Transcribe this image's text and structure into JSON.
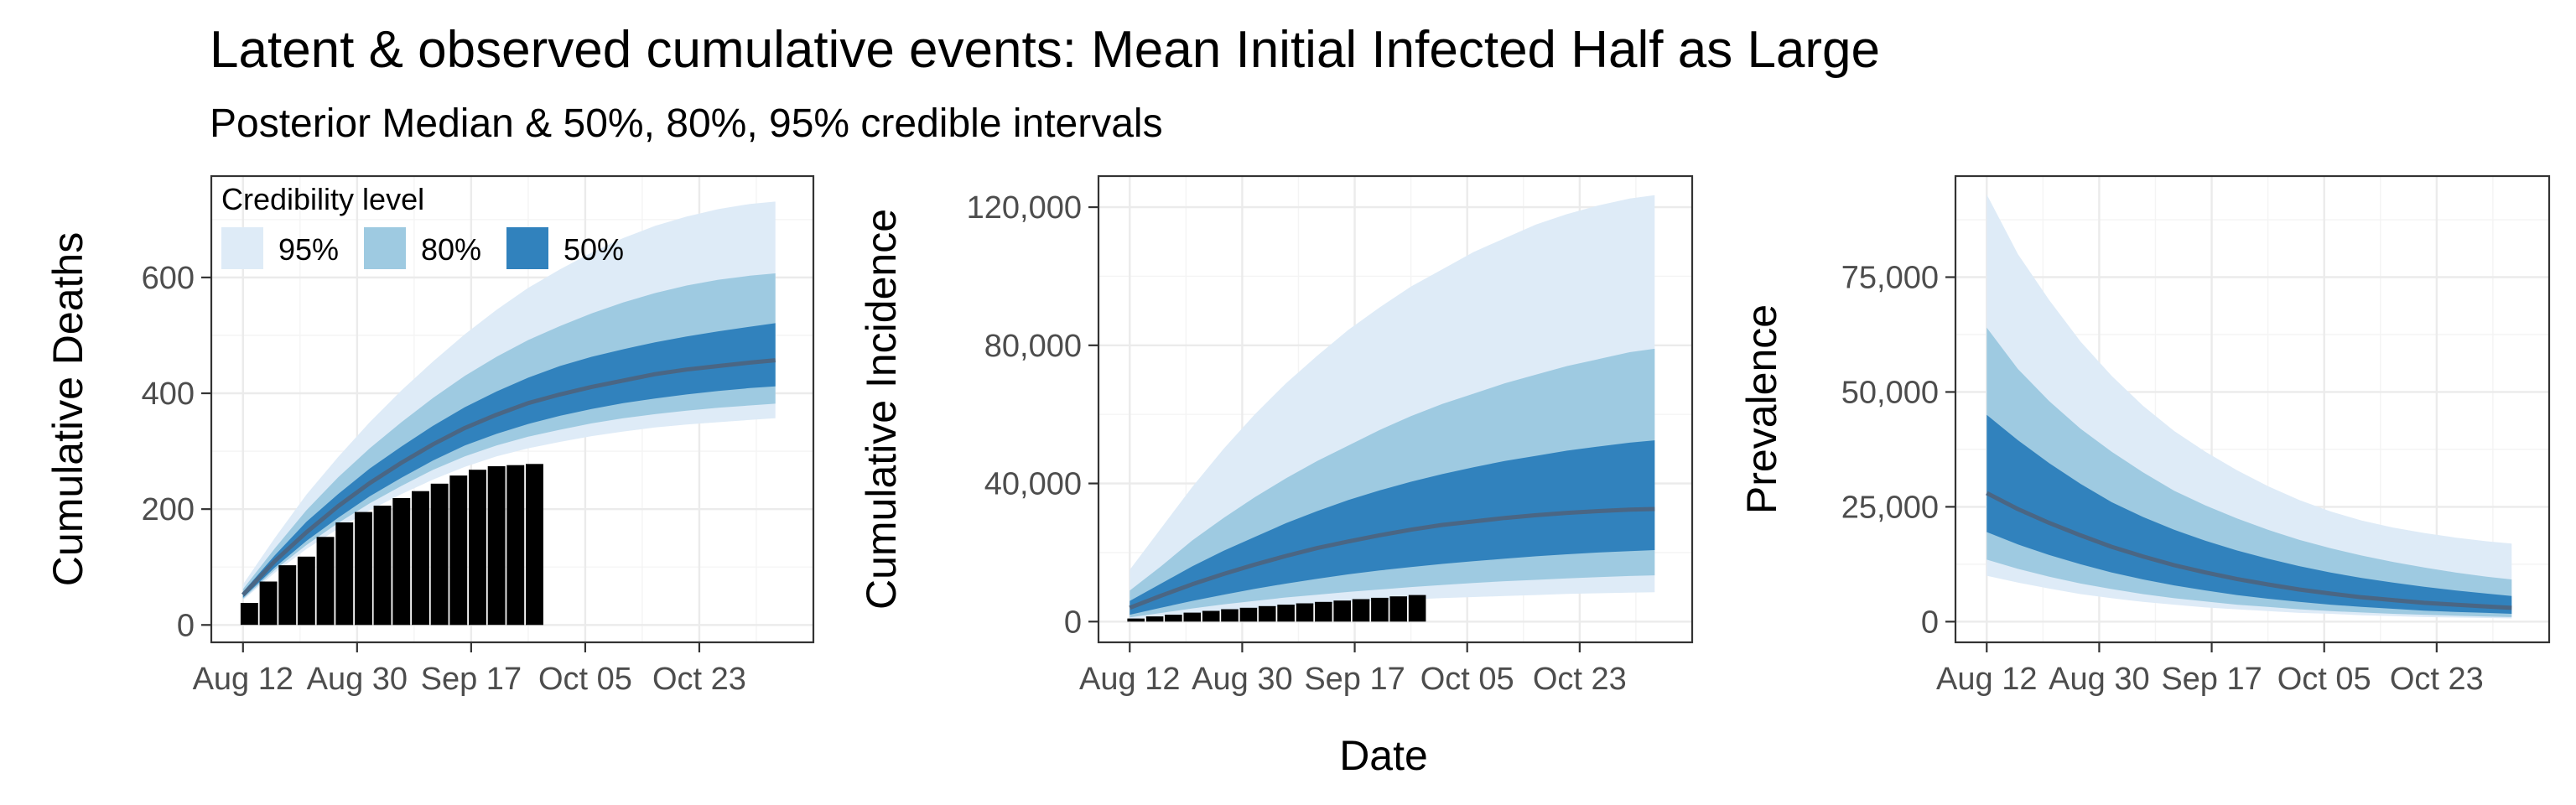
{
  "title": "Latent & observed cumulative events: Mean Initial Infected Half as Large",
  "subtitle": "Posterior Median & 50%, 80%, 95% credible intervals",
  "legend": {
    "title": "Credibility level",
    "entries": [
      {
        "label": "95%",
        "color": "#deebf7"
      },
      {
        "label": "80%",
        "color": "#9ecae1"
      },
      {
        "label": "50%",
        "color": "#3182bd"
      }
    ]
  },
  "colors": {
    "band95": "#deebf7",
    "band80": "#9ecae1",
    "band50": "#3182bd",
    "median": "#4a6684",
    "bars": "#000000"
  },
  "x_axis_title": "Date",
  "chart_data": [
    {
      "type": "area",
      "name": "cumulative-deaths",
      "ylabel": "Cumulative Deaths",
      "xlabel": "",
      "x_ticks": [
        {
          "day": 0,
          "label": "Aug 12"
        },
        {
          "day": 18,
          "label": "Aug 30"
        },
        {
          "day": 36,
          "label": "Sep 17"
        },
        {
          "day": 54,
          "label": "Oct 05"
        },
        {
          "day": 72,
          "label": "Oct 23"
        }
      ],
      "y_ticks": [
        {
          "value": 0,
          "label": "0"
        },
        {
          "value": 200,
          "label": "200"
        },
        {
          "value": 400,
          "label": "400"
        },
        {
          "value": 600,
          "label": "600"
        }
      ],
      "xlim": [
        -5,
        90
      ],
      "ylim": [
        -30,
        775
      ],
      "x": [
        0,
        5,
        10,
        15,
        20,
        25,
        30,
        35,
        40,
        45,
        50,
        55,
        60,
        65,
        70,
        75,
        80,
        84
      ],
      "median": [
        52,
        110,
        160,
        205,
        245,
        280,
        312,
        340,
        363,
        383,
        398,
        411,
        422,
        433,
        441,
        447,
        453,
        457
      ],
      "lo50": [
        47,
        99,
        145,
        185,
        222,
        254,
        284,
        310,
        330,
        347,
        361,
        373,
        383,
        391,
        398,
        404,
        409,
        412
      ],
      "hi50": [
        57,
        120,
        178,
        226,
        270,
        308,
        344,
        376,
        403,
        427,
        447,
        463,
        476,
        488,
        498,
        507,
        515,
        521
      ],
      "lo80": [
        45,
        95,
        138,
        176,
        210,
        240,
        268,
        291,
        310,
        325,
        337,
        348,
        357,
        364,
        370,
        375,
        379,
        382
      ],
      "hi80": [
        62,
        132,
        198,
        255,
        305,
        350,
        392,
        430,
        463,
        492,
        516,
        538,
        557,
        573,
        586,
        596,
        603,
        607
      ],
      "lo95": [
        43,
        90,
        131,
        166,
        198,
        226,
        251,
        273,
        291,
        305,
        316,
        326,
        334,
        341,
        346,
        350,
        354,
        357
      ],
      "hi95": [
        70,
        150,
        225,
        290,
        350,
        405,
        455,
        502,
        544,
        582,
        614,
        643,
        668,
        689,
        705,
        718,
        727,
        731
      ],
      "bars": {
        "days": [
          1,
          4,
          7,
          10,
          13,
          16,
          19,
          22,
          25,
          28,
          31,
          34,
          37,
          40,
          43,
          46
        ],
        "values": [
          38,
          75,
          103,
          118,
          152,
          177,
          195,
          206,
          219,
          231,
          244,
          258,
          268,
          274,
          276,
          278
        ]
      }
    },
    {
      "type": "area",
      "name": "cumulative-incidence",
      "ylabel": "Cumulative Incidence",
      "xlabel": "Date",
      "x_ticks": [
        {
          "day": 0,
          "label": "Aug 12"
        },
        {
          "day": 18,
          "label": "Aug 30"
        },
        {
          "day": 36,
          "label": "Sep 17"
        },
        {
          "day": 54,
          "label": "Oct 05"
        },
        {
          "day": 72,
          "label": "Oct 23"
        }
      ],
      "y_ticks": [
        {
          "value": 0,
          "label": "0"
        },
        {
          "value": 40000,
          "label": "40,000"
        },
        {
          "value": 80000,
          "label": "80,000"
        },
        {
          "value": 120000,
          "label": "120,000"
        }
      ],
      "xlim": [
        -5,
        90
      ],
      "ylim": [
        -6000,
        129000
      ],
      "x": [
        0,
        5,
        10,
        15,
        20,
        25,
        30,
        35,
        40,
        45,
        50,
        55,
        60,
        65,
        70,
        75,
        80,
        84
      ],
      "median": [
        4000,
        7500,
        10800,
        13800,
        16500,
        19000,
        21300,
        23200,
        25000,
        26600,
        28000,
        29000,
        30000,
        30800,
        31500,
        32000,
        32400,
        32600
      ],
      "lo50": [
        2000,
        4000,
        6000,
        7800,
        9500,
        11000,
        12400,
        13700,
        14800,
        15800,
        16700,
        17500,
        18200,
        18900,
        19500,
        20000,
        20400,
        20700
      ],
      "hi50": [
        6000,
        11000,
        16000,
        20500,
        24500,
        28500,
        32000,
        35200,
        38000,
        40500,
        42700,
        44700,
        46500,
        48000,
        49500,
        50700,
        51800,
        52500
      ],
      "lo80": [
        1200,
        2500,
        3800,
        5000,
        6000,
        7000,
        7800,
        8600,
        9300,
        10000,
        10600,
        11200,
        11700,
        12100,
        12500,
        12900,
        13200,
        13400
      ],
      "hi80": [
        9000,
        16000,
        23500,
        30000,
        36000,
        41500,
        46500,
        51000,
        55500,
        59500,
        63000,
        66000,
        69000,
        71500,
        74000,
        76000,
        78000,
        79000
      ],
      "lo95": [
        700,
        1500,
        2300,
        3100,
        3800,
        4400,
        5000,
        5500,
        6000,
        6400,
        6800,
        7100,
        7400,
        7700,
        8000,
        8200,
        8400,
        8500
      ],
      "hi95": [
        15000,
        27000,
        39000,
        50000,
        60000,
        69000,
        77000,
        84500,
        91000,
        97000,
        102000,
        107000,
        111000,
        115000,
        118000,
        120500,
        122500,
        123500
      ],
      "bars": {
        "days": [
          1,
          4,
          7,
          10,
          13,
          16,
          19,
          22,
          25,
          28,
          31,
          34,
          37,
          40,
          43,
          46
        ],
        "values": [
          900,
          1500,
          2000,
          2600,
          3100,
          3600,
          4000,
          4500,
          4900,
          5300,
          5700,
          6100,
          6500,
          6900,
          7300,
          7700
        ]
      }
    },
    {
      "type": "area",
      "name": "prevalence",
      "ylabel": "Prevalence",
      "xlabel": "",
      "x_ticks": [
        {
          "day": 0,
          "label": "Aug 12"
        },
        {
          "day": 18,
          "label": "Aug 30"
        },
        {
          "day": 36,
          "label": "Sep 17"
        },
        {
          "day": 54,
          "label": "Oct 05"
        },
        {
          "day": 72,
          "label": "Oct 23"
        }
      ],
      "y_ticks": [
        {
          "value": 0,
          "label": "0"
        },
        {
          "value": 25000,
          "label": "25,000"
        },
        {
          "value": 50000,
          "label": "50,000"
        },
        {
          "value": 75000,
          "label": "75,000"
        }
      ],
      "xlim": [
        -5,
        90
      ],
      "ylim": [
        -4500,
        97000
      ],
      "x": [
        0,
        5,
        10,
        15,
        20,
        25,
        30,
        35,
        40,
        45,
        50,
        55,
        60,
        65,
        70,
        75,
        80,
        84
      ],
      "median": [
        28000,
        24500,
        21500,
        18800,
        16300,
        14200,
        12300,
        10700,
        9300,
        8100,
        7000,
        6100,
        5300,
        4700,
        4100,
        3700,
        3300,
        3000
      ],
      "lo50": [
        19500,
        16800,
        14500,
        12500,
        10700,
        9200,
        7900,
        6800,
        5800,
        5000,
        4300,
        3700,
        3200,
        2800,
        2400,
        2100,
        1900,
        1700
      ],
      "hi50": [
        45000,
        39500,
        34500,
        30000,
        26000,
        22800,
        20000,
        17600,
        15500,
        13700,
        12100,
        10700,
        9500,
        8500,
        7600,
        6800,
        6100,
        5600
      ],
      "lo80": [
        13500,
        11500,
        9800,
        8300,
        7100,
        6000,
        5100,
        4400,
        3700,
        3200,
        2700,
        2300,
        2000,
        1700,
        1500,
        1300,
        1100,
        1000
      ],
      "hi80": [
        64000,
        55000,
        48000,
        42000,
        37000,
        32500,
        28500,
        25300,
        22500,
        20000,
        17800,
        16000,
        14400,
        13000,
        11800,
        10700,
        9800,
        9200
      ],
      "lo95": [
        10000,
        8500,
        7200,
        6000,
        5100,
        4300,
        3700,
        3100,
        2700,
        2300,
        1900,
        1700,
        1400,
        1200,
        1000,
        900,
        800,
        700
      ],
      "hi95": [
        93000,
        80000,
        70000,
        61000,
        53500,
        47000,
        41500,
        37000,
        33000,
        29500,
        26500,
        24000,
        22000,
        20500,
        19300,
        18300,
        17500,
        17000
      ],
      "bars": null
    }
  ]
}
